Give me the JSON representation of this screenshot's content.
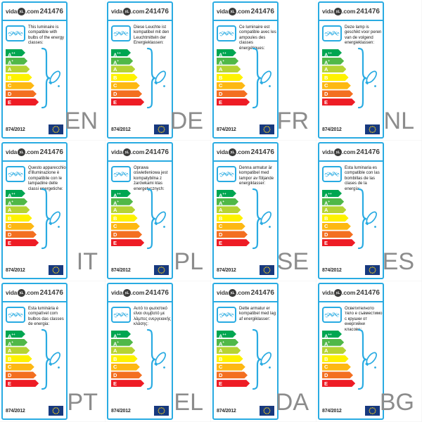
{
  "brand": {
    "prefix": "vida",
    "xl": "XL",
    "suffix": ".com"
  },
  "product_number": "241476",
  "regulation": "874/2012",
  "colors": {
    "accent_blue": "#29abe2",
    "eu_flag_blue": "#17397f",
    "star_yellow": "#ffd617",
    "language_gray": "#8c8c8c"
  },
  "energy_classes": [
    {
      "label": "A++",
      "color": "#00a651"
    },
    {
      "label": "A+",
      "color": "#50b848"
    },
    {
      "label": "A",
      "color": "#b5d334"
    },
    {
      "label": "B",
      "color": "#fef200"
    },
    {
      "label": "C",
      "color": "#fdb813"
    },
    {
      "label": "D",
      "color": "#f36f21"
    },
    {
      "label": "E",
      "color": "#ee1c25"
    }
  ],
  "cards": [
    {
      "language": "EN",
      "description": "This luminaire is compatible with bulbs of the energy classes:"
    },
    {
      "language": "DE",
      "description": "Diese Leuchte ist kompatibel mit den Leuchtmitteln der Energieklassen:"
    },
    {
      "language": "FR",
      "description": "Ce luminaire est compatible avec les ampoules des classes énergétiques:"
    },
    {
      "language": "NL",
      "description": "Deze lamp is geschikt voor peren van de volgend energieklassen:"
    },
    {
      "language": "IT",
      "description": "Questo apparecchio d'illuminazione è compatibile con le lampadine delle classi energetiche:"
    },
    {
      "language": "PL",
      "description": "Oprawa oświetleniowa jest kompatybilna z żarówkami klas energetycznych:"
    },
    {
      "language": "SE",
      "description": "Denna armatur är kompatibel med lampor av följande energiklasser:"
    },
    {
      "language": "ES",
      "description": "Esta luminaria es compatible con las bombillas de las clases de la energía:"
    },
    {
      "language": "PT",
      "description": "Esta luminária é compatível com bulbos das classes de energia:"
    },
    {
      "language": "EL",
      "description": "Αυτό το φωτιστικό είναι συμβατό με λάμπες ενεργειακής κλάσης:"
    },
    {
      "language": "DA",
      "description": "Dette armatur er kompatibel med lag af energiklasser:"
    },
    {
      "language": "BG",
      "description": "Осветителното тяло е съвместимо с крушки от енергийни класове:"
    }
  ]
}
